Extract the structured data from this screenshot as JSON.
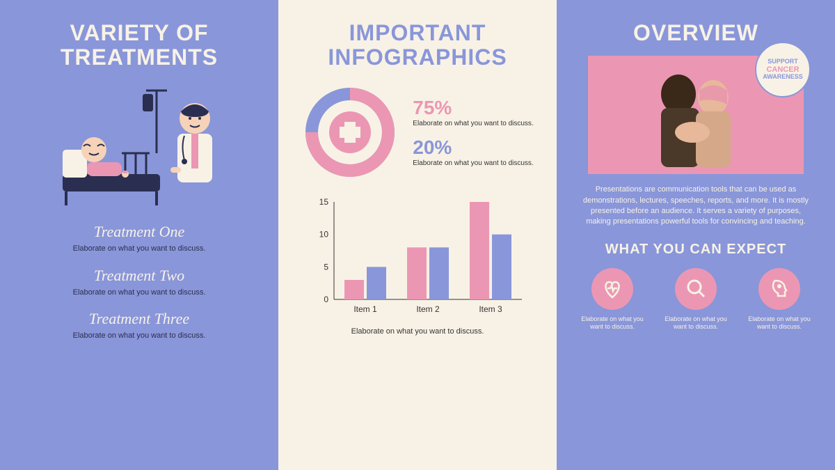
{
  "colors": {
    "periwinkle": "#8996d9",
    "cream": "#f8f2e6",
    "pink": "#eb97b3",
    "navy": "#2a2e50"
  },
  "left": {
    "title": "VARIETY OF TREATMENTS",
    "treatments": [
      {
        "name": "Treatment One",
        "desc": "Elaborate on what\nyou want to discuss."
      },
      {
        "name": "Treatment Two",
        "desc": "Elaborate on what\nyou want to discuss."
      },
      {
        "name": "Treatment Three",
        "desc": "Elaborate on what\nyou want to discuss."
      }
    ]
  },
  "mid": {
    "title": "IMPORTANT INFOGRAPHICS",
    "donut": {
      "pink_pct": 75,
      "blue_pct": 20,
      "stats": [
        {
          "value": "75%",
          "color": "pink",
          "desc": "Elaborate on what\nyou want to discuss."
        },
        {
          "value": "20%",
          "color": "blue",
          "desc": "Elaborate on what\nyou want to discuss."
        }
      ]
    },
    "bar_chart": {
      "type": "bar",
      "categories": [
        "Item 1",
        "Item 2",
        "Item 3"
      ],
      "series": [
        {
          "color": "#eb97b3",
          "values": [
            3,
            8,
            15
          ]
        },
        {
          "color": "#8996d9",
          "values": [
            5,
            8,
            10
          ]
        }
      ],
      "ylim": [
        0,
        15
      ],
      "yticks": [
        0,
        5,
        10,
        15
      ],
      "caption": "Elaborate on what you want to discuss."
    }
  },
  "right": {
    "title": "OVERVIEW",
    "badge": {
      "line1": "SUPPORT",
      "line2": "CANCER",
      "line3": "AWARENESS"
    },
    "text": "Presentations are communication tools that can be used as demonstrations, lectures, speeches, reports, and more. It is mostly presented before an audience. It serves a variety of purposes, making presentations powerful tools for convincing and teaching.",
    "subtitle": "WHAT YOU CAN EXPECT",
    "expect": [
      {
        "icon": "heart",
        "desc": "Elaborate on what\nyou want to discuss."
      },
      {
        "icon": "search",
        "desc": "Elaborate on what\nyou want to discuss."
      },
      {
        "icon": "head",
        "desc": "Elaborate on what\nyou want to discuss."
      }
    ]
  }
}
